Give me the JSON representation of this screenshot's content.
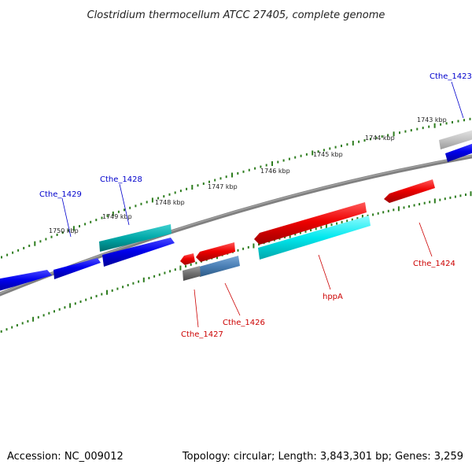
{
  "title": "Clostridium thermocellum ATCC 27405, complete genome",
  "footer": {
    "accession": "Accession: NC_009012",
    "summary": "Topology: circular; Length: 3,843,301 bp; Genes: 3,259"
  },
  "colors": {
    "backbone": "#808080",
    "ticks": "#2e7d1f",
    "forward_cds": "#0000ee",
    "forward_misc": "#00a8a8",
    "reverse_cds": "#ee0000",
    "reverse_misc": "#00e8ee",
    "reverse_gene": "#4a7fb5",
    "other": "#707070",
    "forward_label": "#0000cc",
    "reverse_label": "#cc0000"
  },
  "scale": {
    "unit": "kbp",
    "labels": [
      "1743 kbp",
      "1744 kbp",
      "1745 kbp",
      "1746 kbp",
      "1747 kbp",
      "1748 kbp",
      "1749 kbp",
      "1750 kbp"
    ]
  },
  "gene_labels": [
    {
      "id": "cthe_1423",
      "text": "Cthe_1423",
      "strand": "forward"
    },
    {
      "id": "cthe_1428",
      "text": "Cthe_1428",
      "strand": "forward"
    },
    {
      "id": "cthe_1429",
      "text": "Cthe_1429",
      "strand": "forward"
    },
    {
      "id": "cthe_1424",
      "text": "Cthe_1424",
      "strand": "reverse"
    },
    {
      "id": "hppa",
      "text": "hppA",
      "strand": "reverse"
    },
    {
      "id": "cthe_1426",
      "text": "Cthe_1426",
      "strand": "reverse"
    },
    {
      "id": "cthe_1427",
      "text": "Cthe_1427",
      "strand": "reverse"
    }
  ]
}
